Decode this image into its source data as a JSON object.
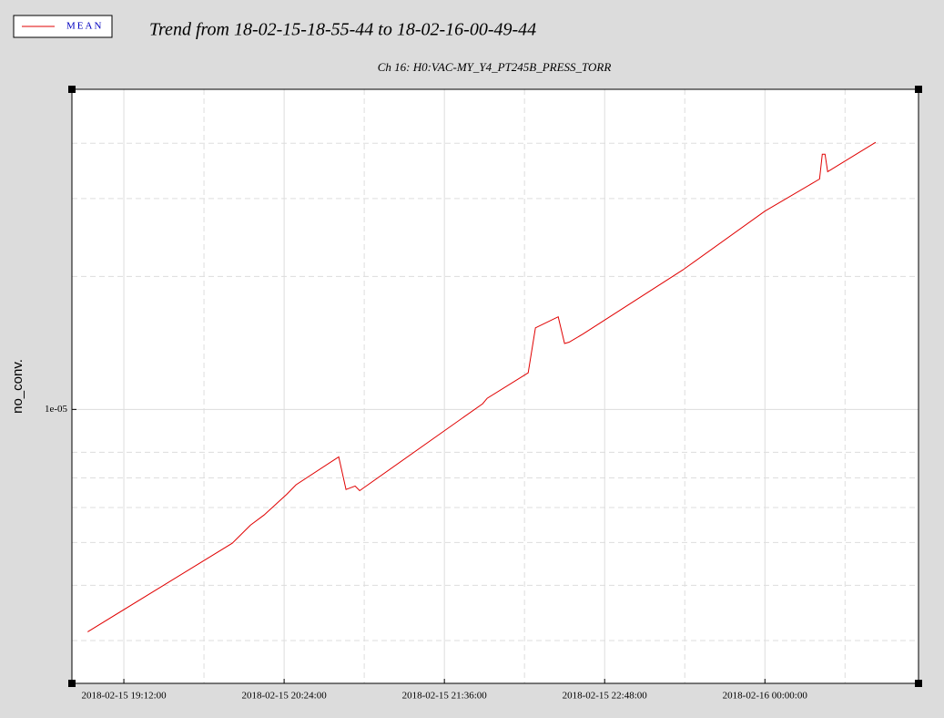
{
  "chart_data": {
    "type": "line",
    "title": "Trend from 18-02-15-18-55-44 to 18-02-16-00-49-44",
    "subtitle": "Ch 16: H0:VAC-MY_Y4_PT245B_PRESS_TORR",
    "ylabel": "no_conv.",
    "log_y": true,
    "grid": true,
    "legend": "top-left",
    "x": [
      "2018-02-15 18:55:44",
      "2018-02-15 20:00:41",
      "2018-02-15 20:08:52",
      "2018-02-15 20:15:00",
      "2018-02-15 20:25:14",
      "2018-02-15 20:29:19",
      "2018-02-15 20:48:33",
      "2018-02-15 20:51:49",
      "2018-02-15 20:55:54",
      "2018-02-15 20:57:57",
      "2018-02-15 21:53:11",
      "2018-02-15 21:55:14",
      "2018-02-15 22:13:38",
      "2018-02-15 22:16:55",
      "2018-02-15 22:27:08",
      "2018-02-15 22:30:00",
      "2018-02-15 22:32:03",
      "2018-02-15 22:38:11",
      "2018-02-15 23:23:11",
      "2018-02-16 00:00:00",
      "2018-02-16 00:24:33",
      "2018-02-16 00:25:46",
      "2018-02-16 00:27:00",
      "2018-02-16 00:28:12",
      "2018-02-16 00:49:44"
    ],
    "series": [
      {
        "name": "MEAN",
        "color": "#e00000",
        "values": [
          3.14e-06,
          4.98e-06,
          5.47e-06,
          5.77e-06,
          6.43e-06,
          6.75e-06,
          7.81e-06,
          6.59e-06,
          6.71e-06,
          6.55e-06,
          1.03e-05,
          1.06e-05,
          1.21e-05,
          1.53e-05,
          1.62e-05,
          1.41e-05,
          1.42e-05,
          1.48e-05,
          2.07e-05,
          2.81e-05,
          3.32e-05,
          3.78e-05,
          3.78e-05,
          3.45e-05,
          4.02e-05
        ]
      }
    ],
    "xlim": [
      "2018-02-15 18:48:40",
      "2018-02-16 01:09:00"
    ],
    "xticks": [
      "2018-02-15 19:12:00",
      "2018-02-15 20:24:00",
      "2018-02-15 21:36:00",
      "2018-02-15 22:48:00",
      "2018-02-16 00:00:00"
    ],
    "xminorticks": [
      "2018-02-15 19:48:00",
      "2018-02-15 21:00:00",
      "2018-02-15 22:12:00",
      "2018-02-15 23:24:00",
      "2018-02-16 00:36:00"
    ],
    "ylim": [
      2.4e-06,
      5.3e-05
    ],
    "yticks": [
      {
        "value": 1e-05,
        "label": "1e-05"
      }
    ],
    "yminorticks": [
      3e-06,
      4e-06,
      5e-06,
      6e-06,
      7e-06,
      8e-06,
      2e-05,
      3e-05,
      4e-05
    ]
  }
}
